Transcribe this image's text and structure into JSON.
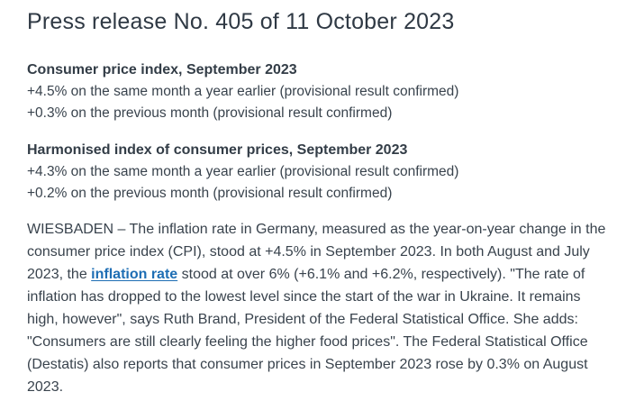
{
  "header": {
    "title": "Press release No. 405 of 11 October 2023"
  },
  "lead": {
    "cpi": {
      "heading": "Consumer price index, September 2023",
      "lines": [
        "+4.5% on the same month a year earlier (provisional result confirmed)",
        "+0.3% on the previous month (provisional result confirmed)"
      ]
    },
    "hicp": {
      "heading": "Harmonised index of consumer prices, September 2023",
      "lines": [
        "+4.3% on the same month a year earlier (provisional result confirmed)",
        "+0.2% on the previous month (provisional result confirmed)"
      ]
    }
  },
  "body": {
    "before_link": "WIESBADEN – The inflation rate in Germany, measured as the year-on-year change in the consumer price index (CPI), stood at +4.5% in September 2023. In both August and July 2023, the ",
    "link_text": "inflation rate",
    "after_link": " stood at over 6% (+6.1% and +6.2%, respectively). \"The rate of inflation has dropped to the lowest level since the start of the war in Ukraine. It remains high, however\", says Ruth Brand, President of the Federal Statistical Office. She adds: \"Consumers are still clearly feeling the higher food prices\". The Federal Statistical Office (Destatis) also reports that consumer prices in September 2023 rose by 0.3% on August 2023."
  },
  "colors": {
    "link": "#1e6eb4",
    "text": "#39434d",
    "title": "#2f3944"
  }
}
